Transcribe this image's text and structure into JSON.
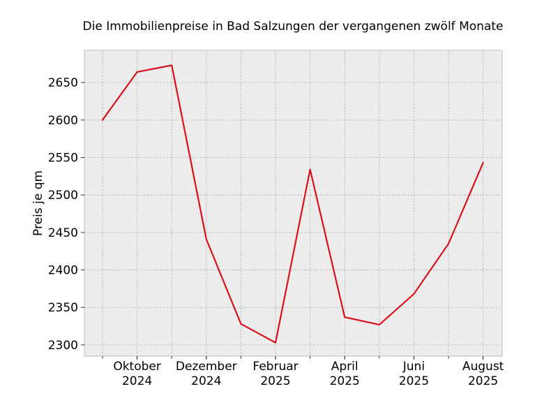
{
  "chart_data": {
    "type": "line",
    "title": "Die Immobilienpreise in Bad Salzungen der vergangenen zwölf Monate",
    "xlabel": "",
    "ylabel": "Preis je qm",
    "x": [
      "2024-09",
      "2024-10",
      "2024-11",
      "2024-12",
      "2025-01",
      "2025-02",
      "2025-03",
      "2025-04",
      "2025-05",
      "2025-06",
      "2025-07",
      "2025-08"
    ],
    "xticks": [
      {
        "x": "2024-10",
        "label": [
          "Oktober",
          "2024"
        ]
      },
      {
        "x": "2024-12",
        "label": [
          "Dezember",
          "2024"
        ]
      },
      {
        "x": "2025-02",
        "label": [
          "Februar",
          "2025"
        ]
      },
      {
        "x": "2025-04",
        "label": [
          "April",
          "2025"
        ]
      },
      {
        "x": "2025-06",
        "label": [
          "Juni",
          "2025"
        ]
      },
      {
        "x": "2025-08",
        "label": [
          "August",
          "2025"
        ]
      }
    ],
    "series": [
      {
        "values": [
          2600,
          2664,
          2673,
          2441,
          2328,
          2303,
          2534,
          2337,
          2327,
          2368,
          2435,
          2543
        ],
        "color": "#d9111b"
      }
    ],
    "yticks": [
      2300,
      2350,
      2400,
      2450,
      2500,
      2550,
      2600,
      2650
    ],
    "ylim": [
      2285,
      2693
    ],
    "grid": true,
    "legend": false,
    "colors": {
      "plot_background": "#ececec",
      "grid": "#b0b0b0",
      "frame": "#bcbcbc"
    }
  }
}
